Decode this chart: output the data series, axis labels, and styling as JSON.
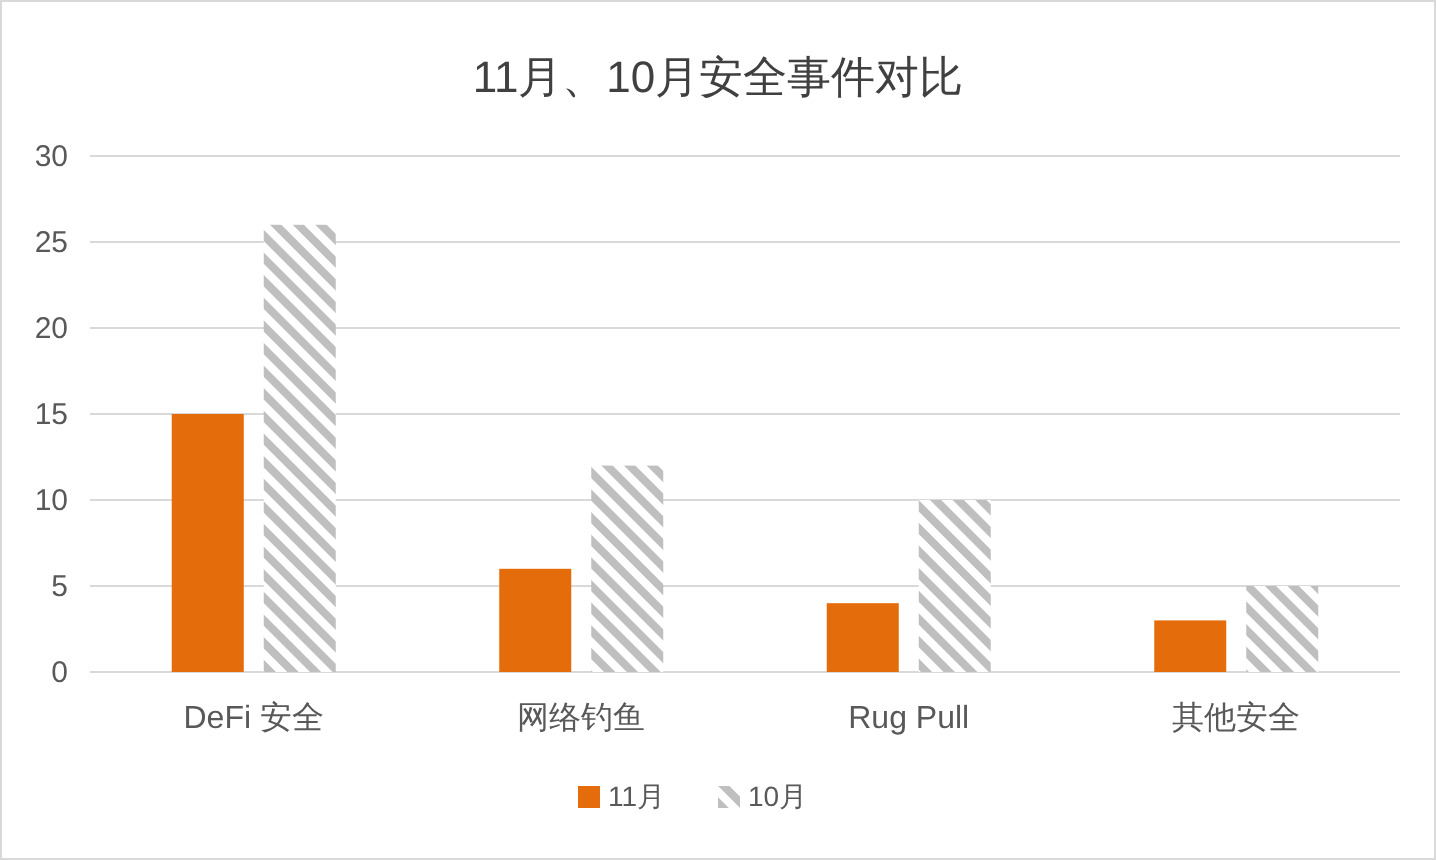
{
  "chart_data": {
    "type": "bar",
    "title": "11月、10月安全事件对比",
    "categories": [
      "DeFi 安全",
      "网络钓鱼",
      "Rug Pull",
      "其他安全"
    ],
    "series": [
      {
        "name": "11月",
        "color": "#e46c0a",
        "values": [
          15,
          6,
          4,
          3
        ]
      },
      {
        "name": "10月",
        "color": "#bfbfbf",
        "values": [
          26,
          12,
          10,
          5
        ]
      }
    ],
    "ylim": [
      0,
      30
    ],
    "yticks": [
      0,
      5,
      10,
      15,
      20,
      25,
      30
    ],
    "grid": "y",
    "legend": "bottom"
  }
}
